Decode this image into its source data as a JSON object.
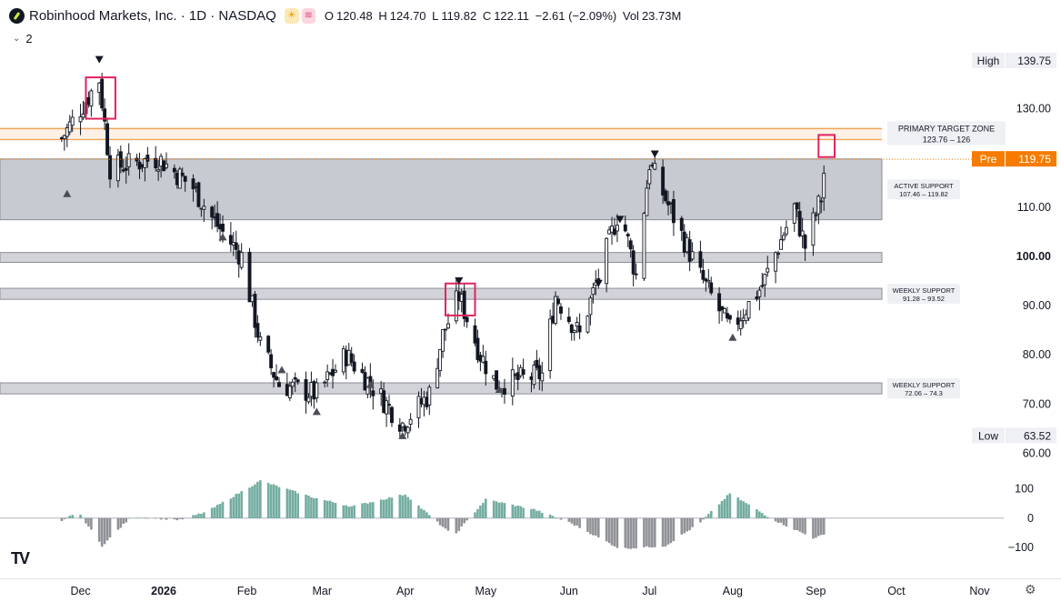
{
  "header": {
    "symbol_title": "Robinhood Markets, Inc. · 1D · NASDAQ",
    "badge_sun": "☀",
    "badge_wave": "≋",
    "open_label": "O",
    "open_value": "120.48",
    "high_label": "H",
    "high_value": "124.70",
    "low_label": "L",
    "low_value": "119.82",
    "close_label": "C",
    "close_value": "122.11",
    "change": "−2.61 (−2.09%)",
    "vol_label": "Vol",
    "vol_value": "23.73M"
  },
  "indicator_toggle": {
    "count": "2"
  },
  "logo_text": "TV",
  "colors": {
    "candle": "#131722",
    "zone_fill": "#b2b5be",
    "target_line": "#f0a35a",
    "highlight_box": "#e0245e",
    "pre_tag": "#f57c00",
    "osc_green": "#5a9e8f",
    "osc_grey": "#7d7f85"
  },
  "chart_data": {
    "type": "candlestick",
    "y_axis": {
      "range": [
        56,
        144
      ],
      "tick_labels": [
        "130.00",
        "120.00",
        "110.00",
        "100.00",
        "90.00",
        "80.00",
        "70.00",
        "60.00"
      ],
      "bold_tick": "100.00"
    },
    "x_axis": {
      "tick_labels": [
        "Dec",
        "2026",
        "Feb",
        "Mar",
        "Apr",
        "May",
        "Jun",
        "Jul",
        "Aug",
        "Sep",
        "Oct",
        "Nov"
      ],
      "bold_tick": "2026"
    },
    "price_tags": {
      "high_label": "High",
      "high_value": "139.75",
      "pre_label": "Pre",
      "pre_value": "119.75",
      "low_label": "Low",
      "low_value": "63.52"
    },
    "zones": [
      {
        "name": "primary-target-zone",
        "low": 123.76,
        "high": 126,
        "label": "PRIMARY TARGET ZONE",
        "range_text": "123.76 – 126"
      },
      {
        "name": "active-support",
        "low": 107.46,
        "high": 119.82,
        "label": "ACTIVE SUPPORT",
        "range_text": "107.46 – 119.82"
      },
      {
        "name": "round-100-band",
        "low": 98.8,
        "high": 100.8,
        "label": "",
        "range_text": ""
      },
      {
        "name": "weekly-support-upper",
        "low": 91.28,
        "high": 93.52,
        "label": "WEEKLY SUPPORT",
        "range_text": "91.28 – 93.52"
      },
      {
        "name": "weekly-support-lower",
        "low": 72.06,
        "high": 74.3,
        "label": "WEEKLY SUPPORT",
        "range_text": "72.06 – 74.3"
      }
    ],
    "close_path": [
      {
        "date": "2025-11-24",
        "close": 124
      },
      {
        "date": "2025-12-08",
        "close": 136
      },
      {
        "date": "2025-12-12",
        "close": 118
      },
      {
        "date": "2025-12-30",
        "close": 120
      },
      {
        "date": "2026-01-12",
        "close": 114
      },
      {
        "date": "2026-01-20",
        "close": 107
      },
      {
        "date": "2026-01-30",
        "close": 100
      },
      {
        "date": "2026-02-06",
        "close": 82
      },
      {
        "date": "2026-02-13",
        "close": 74
      },
      {
        "date": "2026-02-27",
        "close": 72
      },
      {
        "date": "2026-03-10",
        "close": 80
      },
      {
        "date": "2026-03-31",
        "close": 66
      },
      {
        "date": "2026-04-10",
        "close": 72
      },
      {
        "date": "2026-04-15",
        "close": 84
      },
      {
        "date": "2026-04-21",
        "close": 92
      },
      {
        "date": "2026-04-29",
        "close": 80
      },
      {
        "date": "2026-05-05",
        "close": 74
      },
      {
        "date": "2026-05-22",
        "close": 76
      },
      {
        "date": "2026-05-27",
        "close": 92
      },
      {
        "date": "2026-06-05",
        "close": 84
      },
      {
        "date": "2026-06-12",
        "close": 96
      },
      {
        "date": "2026-06-20",
        "close": 110
      },
      {
        "date": "2026-06-26",
        "close": 96
      },
      {
        "date": "2026-07-01",
        "close": 119
      },
      {
        "date": "2026-07-10",
        "close": 108
      },
      {
        "date": "2026-07-20",
        "close": 96
      },
      {
        "date": "2026-07-31",
        "close": 85
      },
      {
        "date": "2026-08-12",
        "close": 94
      },
      {
        "date": "2026-08-24",
        "close": 110
      },
      {
        "date": "2026-08-28",
        "close": 102
      },
      {
        "date": "2026-09-03",
        "close": 112
      },
      {
        "date": "2026-09-05",
        "close": 122
      }
    ],
    "markers_down": [
      {
        "date": "2025-12-08",
        "value": 140
      },
      {
        "date": "2026-04-21",
        "value": 95
      },
      {
        "date": "2026-06-12",
        "value": 94.5
      },
      {
        "date": "2026-06-20",
        "value": 107.5
      },
      {
        "date": "2026-07-03",
        "value": 120.8
      }
    ],
    "markers_up": [
      {
        "date": "2025-11-26",
        "value": 112.8
      },
      {
        "date": "2026-01-23",
        "value": 104
      },
      {
        "date": "2026-02-14",
        "value": 77
      },
      {
        "date": "2026-02-27",
        "value": 68.5
      },
      {
        "date": "2026-03-19",
        "value": 74
      },
      {
        "date": "2026-03-31",
        "value": 63.6
      },
      {
        "date": "2026-05-06",
        "value": 73
      },
      {
        "date": "2026-08-01",
        "value": 83.6
      }
    ],
    "highlights": [
      {
        "date_from": "2025-12-03",
        "date_to": "2025-12-14",
        "low": 128,
        "high": 136.4
      },
      {
        "date_from": "2026-04-16",
        "date_to": "2026-04-27",
        "low": 88,
        "high": 94.5
      },
      {
        "date_from": "2026-09-02",
        "date_to": "2026-09-08",
        "low": 120.2,
        "high": 124.7
      }
    ],
    "oscillator": {
      "zero_label": "0",
      "tick_labels": [
        "100",
        "0",
        "−100"
      ],
      "range": [
        -150,
        130
      ],
      "points": [
        {
          "date": "2025-11-24",
          "value": -12
        },
        {
          "date": "2025-11-30",
          "value": 25
        },
        {
          "date": "2025-12-09",
          "value": -95
        },
        {
          "date": "2025-12-20",
          "value": 5
        },
        {
          "date": "2026-01-07",
          "value": -6
        },
        {
          "date": "2026-01-17",
          "value": 22
        },
        {
          "date": "2026-02-06",
          "value": 128
        },
        {
          "date": "2026-02-26",
          "value": 70
        },
        {
          "date": "2026-03-12",
          "value": 40
        },
        {
          "date": "2026-04-01",
          "value": 82
        },
        {
          "date": "2026-04-19",
          "value": -62
        },
        {
          "date": "2026-05-01",
          "value": 64
        },
        {
          "date": "2026-05-19",
          "value": 30
        },
        {
          "date": "2026-06-02",
          "value": -18
        },
        {
          "date": "2026-06-20",
          "value": -105
        },
        {
          "date": "2026-07-07",
          "value": -95
        },
        {
          "date": "2026-07-20",
          "value": -15
        },
        {
          "date": "2026-07-31",
          "value": 85
        },
        {
          "date": "2026-08-16",
          "value": -5
        },
        {
          "date": "2026-08-31",
          "value": -68
        },
        {
          "date": "2026-09-05",
          "value": -55
        }
      ]
    }
  }
}
